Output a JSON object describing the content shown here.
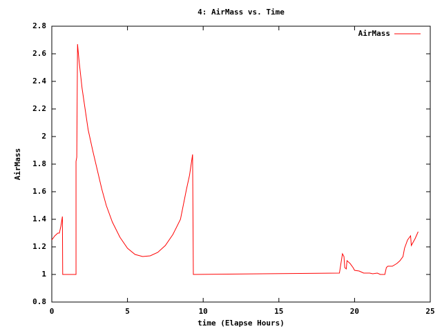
{
  "chart_data": {
    "type": "line",
    "title": "4: AirMass vs. Time",
    "xlabel": "time (Elapse Hours)",
    "ylabel": "AirMass",
    "x": [
      0,
      0.2,
      0.4,
      0.5,
      0.6,
      0.7,
      0.72,
      1.6,
      1.6,
      1.65,
      1.7,
      1.8,
      2.0,
      2.2,
      2.4,
      2.7,
      3.0,
      3.3,
      3.6,
      4.0,
      4.5,
      5.0,
      5.5,
      6.0,
      6.5,
      7.0,
      7.5,
      8.0,
      8.5,
      8.9,
      9.1,
      9.3,
      9.35,
      19.0,
      19.2,
      19.3,
      19.35,
      19.45,
      19.5,
      19.7,
      19.9,
      20.0,
      20.3,
      20.6,
      21.0,
      21.2,
      21.5,
      21.7,
      22.0,
      22.1,
      22.2,
      22.5,
      22.8,
      23.0,
      23.2,
      23.3,
      23.5,
      23.7,
      23.75,
      24.0,
      24.2
    ],
    "series": [
      {
        "name": "AirMass",
        "color": "#ff0000",
        "values": [
          1.25,
          1.28,
          1.3,
          1.3,
          1.35,
          1.42,
          1.0,
          1.0,
          1.82,
          1.85,
          2.67,
          2.55,
          2.35,
          2.2,
          2.05,
          1.9,
          1.76,
          1.62,
          1.5,
          1.38,
          1.27,
          1.19,
          1.145,
          1.13,
          1.135,
          1.16,
          1.21,
          1.29,
          1.4,
          1.62,
          1.72,
          1.87,
          1.0,
          1.01,
          1.15,
          1.13,
          1.05,
          1.04,
          1.1,
          1.08,
          1.05,
          1.03,
          1.025,
          1.01,
          1.01,
          1.005,
          1.01,
          1.0,
          1.0,
          1.05,
          1.06,
          1.06,
          1.08,
          1.1,
          1.13,
          1.19,
          1.25,
          1.28,
          1.21,
          1.26,
          1.31
        ]
      }
    ],
    "xlim": [
      0,
      25
    ],
    "xticks": [
      0,
      5,
      10,
      15,
      20,
      25
    ],
    "ylim": [
      0.8,
      2.8
    ],
    "yticks": [
      0.8,
      1,
      1.2,
      1.4,
      1.6,
      1.8,
      2,
      2.2,
      2.4,
      2.6,
      2.8
    ],
    "legend": "top right"
  }
}
